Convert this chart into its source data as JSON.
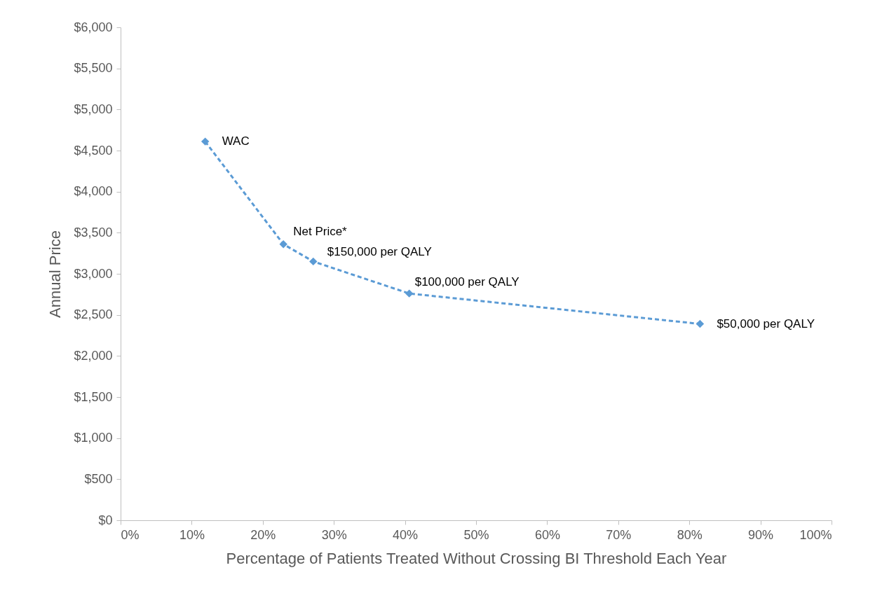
{
  "chart_data": {
    "type": "line",
    "xlabel": "Percentage of Patients Treated Without Crossing BI Threshold Each Year",
    "ylabel": "Annual Price",
    "x": [
      11.9,
      22.9,
      27.1,
      40.6,
      81.5
    ],
    "series": [
      {
        "color": "#5b9bd5",
        "values": [
          4610,
          3360,
          3150,
          2760,
          2390
        ]
      }
    ],
    "marker": "diamond",
    "line_style": "dashed",
    "grid": false,
    "xlim": [
      0,
      100
    ],
    "xticks": [
      {
        "value": 0,
        "label": "0%"
      },
      {
        "value": 10,
        "label": "10%"
      },
      {
        "value": 20,
        "label": "20%"
      },
      {
        "value": 30,
        "label": "30%"
      },
      {
        "value": 40,
        "label": "40%"
      },
      {
        "value": 50,
        "label": "50%"
      },
      {
        "value": 60,
        "label": "60%"
      },
      {
        "value": 70,
        "label": "70%"
      },
      {
        "value": 80,
        "label": "80%"
      },
      {
        "value": 90,
        "label": "90%"
      },
      {
        "value": 100,
        "label": "100%"
      }
    ],
    "ylim": [
      0,
      6000
    ],
    "yticks": [
      {
        "value": 0,
        "label": "$0"
      },
      {
        "value": 500,
        "label": "$500"
      },
      {
        "value": 1000,
        "label": "$1,000"
      },
      {
        "value": 1500,
        "label": "$1,500"
      },
      {
        "value": 2000,
        "label": "$2,000"
      },
      {
        "value": 2500,
        "label": "$2,500"
      },
      {
        "value": 3000,
        "label": "$3,000"
      },
      {
        "value": 3500,
        "label": "$3,500"
      },
      {
        "value": 4000,
        "label": "$4,000"
      },
      {
        "value": 4500,
        "label": "$4,500"
      },
      {
        "value": 5000,
        "label": "$5,000"
      },
      {
        "value": 5500,
        "label": "$5,500"
      },
      {
        "value": 6000,
        "label": "$6,000"
      }
    ],
    "annotations": [
      {
        "text": "WAC",
        "x": 11.9,
        "y": 4610
      },
      {
        "text": "Net Price*",
        "x": 22.9,
        "y": 3360
      },
      {
        "text": "$150,000 per QALY",
        "x": 27.1,
        "y": 3150
      },
      {
        "text": "$100,000 per QALY",
        "x": 40.6,
        "y": 2760
      },
      {
        "text": "$50,000 per QALY",
        "x": 81.5,
        "y": 2390
      }
    ]
  }
}
